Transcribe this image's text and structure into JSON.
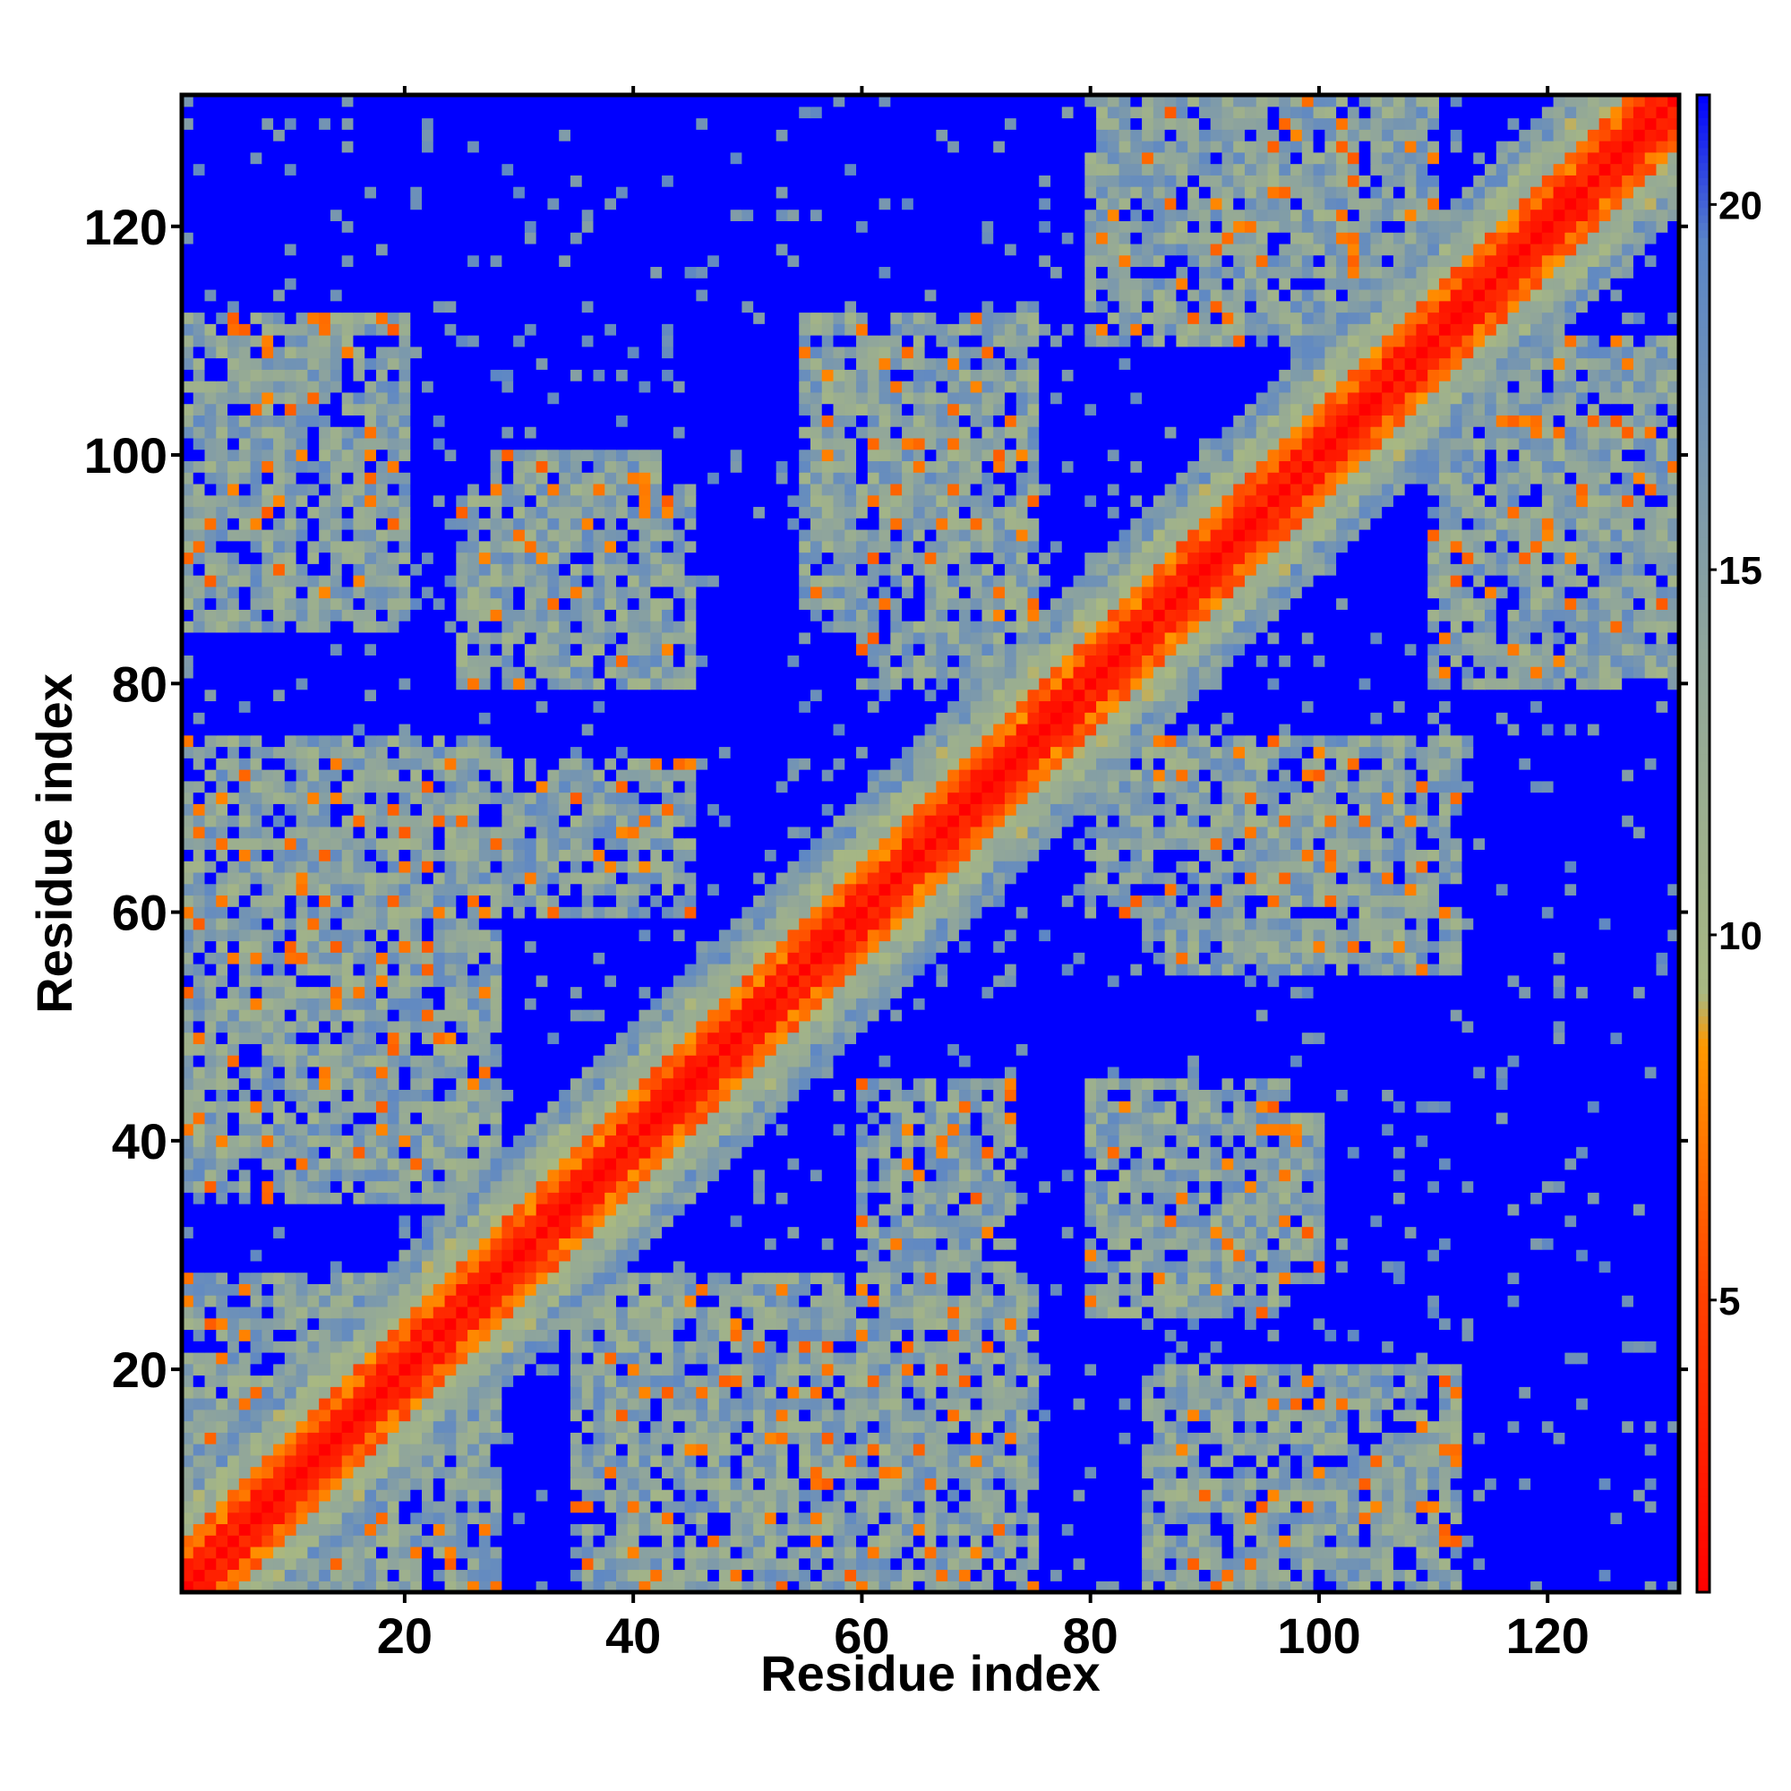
{
  "chart_data": {
    "type": "heatmap",
    "title": "",
    "xlabel": "Residue index",
    "ylabel": "Residue index",
    "n_residues": 131,
    "xlim": [
      1,
      131
    ],
    "ylim": [
      1,
      131
    ],
    "x_ticks": [
      20,
      40,
      60,
      80,
      100,
      120
    ],
    "x_tick_labels": [
      "20",
      "40",
      "60",
      "80",
      "100",
      "120"
    ],
    "y_ticks": [
      20,
      40,
      60,
      80,
      100,
      120
    ],
    "y_tick_labels": [
      "20",
      "40",
      "60",
      "80",
      "100",
      "120"
    ],
    "colorbar": {
      "range": [
        1,
        21.5
      ],
      "ticks": [
        5,
        10,
        15,
        20
      ],
      "tick_labels": [
        "5",
        "10",
        "15",
        "20"
      ],
      "scale": [
        {
          "value": 1,
          "color": "#ff0000"
        },
        {
          "value": 5,
          "color": "#ff4000"
        },
        {
          "value": 8.5,
          "color": "#ff9900"
        },
        {
          "value": 9.2,
          "color": "#a8b882"
        },
        {
          "value": 14,
          "color": "#8fa59c"
        },
        {
          "value": 19.5,
          "color": "#5a85c8"
        },
        {
          "value": 21.5,
          "color": "#0000ff"
        }
      ]
    },
    "description_of_values": "symmetric residue-residue distance matrix; diagonal ~1-3, helical contacts near diagonal, large off-diagonal regions saturated at maximum",
    "contact_blocks": [
      {
        "x_range": [
          1,
          28
        ],
        "y_range": [
          1,
          28
        ]
      },
      {
        "x_range": [
          35,
          75
        ],
        "y_range": [
          1,
          28
        ]
      },
      {
        "x_range": [
          85,
          112
        ],
        "y_range": [
          1,
          20
        ]
      },
      {
        "x_range": [
          10,
          45
        ],
        "y_range": [
          60,
          73
        ]
      },
      {
        "x_range": [
          25,
          45
        ],
        "y_range": [
          80,
          97
        ]
      },
      {
        "x_range": [
          60,
          75
        ],
        "y_range": [
          80,
          110
        ]
      },
      {
        "x_range": [
          80,
          110
        ],
        "y_range": [
          110,
          131
        ]
      },
      {
        "x_range": [
          80,
          100
        ],
        "y_range": [
          28,
          42
        ]
      },
      {
        "x_range": [
          85,
          112
        ],
        "y_range": [
          55,
          75
        ]
      },
      {
        "x_range": [
          110,
          131
        ],
        "y_range": [
          80,
          95
        ]
      }
    ]
  }
}
